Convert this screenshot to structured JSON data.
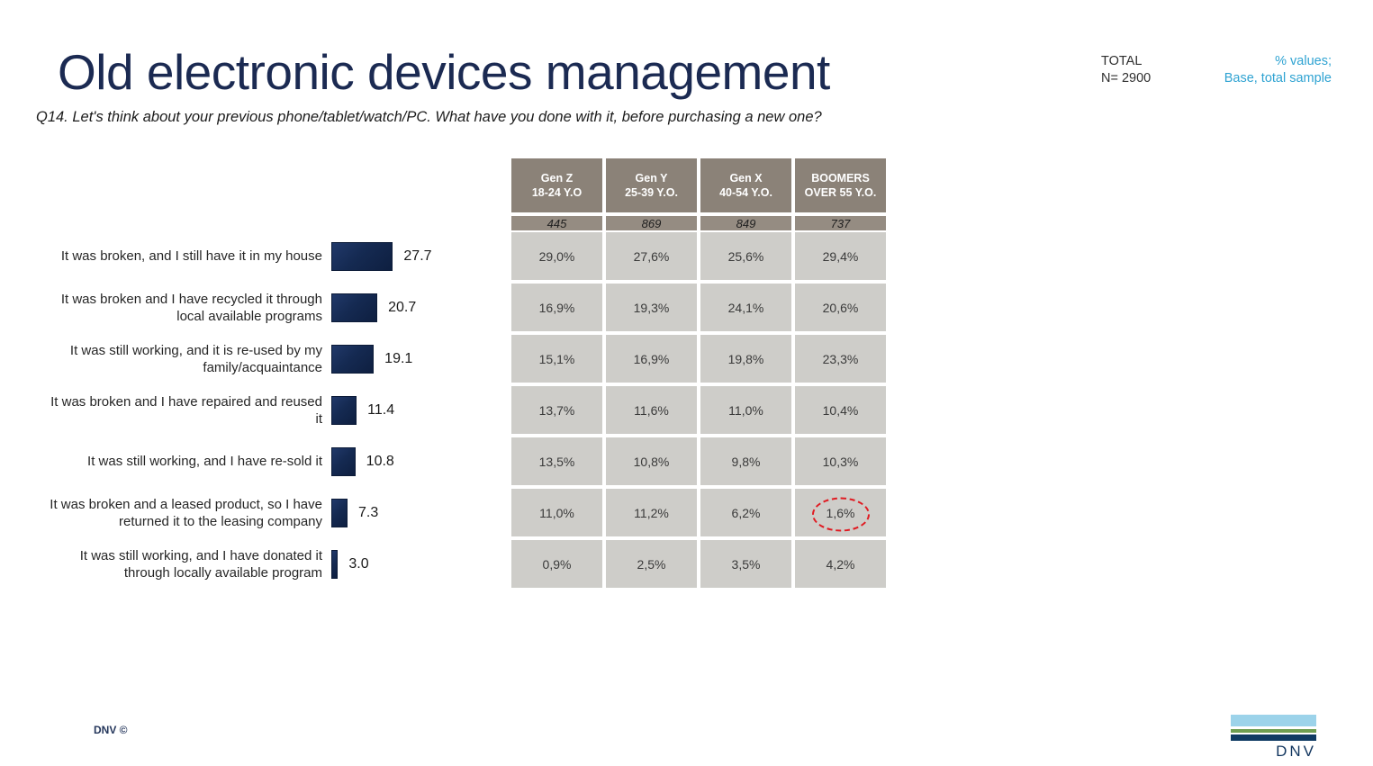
{
  "slide": {
    "title": "Old electronic devices management",
    "question": "Q14. Let's think about your previous phone/tablet/watch/PC. What have you done with it, before purchasing a new one?",
    "total_label": "TOTAL",
    "total_n": "N= 2900",
    "note_line1": "% values;",
    "note_line2": "Base, total sample",
    "footer_left": "DNV ©",
    "logo_text": "DNV"
  },
  "colors": {
    "title_navy": "#1b2a52",
    "bar_navy": "#152a52",
    "note_blue": "#2fa3d2",
    "table_header_taupe": "#8b8278",
    "table_base_taupe": "#958c82",
    "table_cell_gray": "#cecdc9",
    "highlight_red": "#e01b22",
    "logo_lightblue": "#9cd3ea",
    "logo_green": "#6f9e52",
    "logo_navy": "#0f3a63"
  },
  "chart_data": {
    "type": "bar",
    "orientation": "horizontal",
    "title": "Old electronic devices management",
    "xlabel": "",
    "ylabel": "",
    "xlim": [
      0,
      30
    ],
    "grid": false,
    "categories": [
      "It was broken, and I still have it in my house",
      "It was broken and I have recycled it through local available programs",
      "It was still working, and it is re-used by my family/acquaintance",
      "It was broken and I have repaired and reused it",
      "It was still working, and I have re-sold it",
      "It was broken and a leased product, so I have returned it to the leasing company",
      "It was still working, and I have donated it through locally available program"
    ],
    "values": [
      27.7,
      20.7,
      19.1,
      11.4,
      10.8,
      7.3,
      3.0
    ],
    "value_labels": [
      "27.7",
      "20.7",
      "19.1",
      "11.4",
      "10.8",
      "7.3",
      "3.0"
    ],
    "table": {
      "columns": [
        {
          "name": "Gen Z",
          "age": "18-24 Y.O"
        },
        {
          "name": "Gen Y",
          "age": "25-39 Y.O."
        },
        {
          "name": "Gen X",
          "age": "40-54 Y.O."
        },
        {
          "name": "BOOMERS",
          "age": "OVER 55 Y.O."
        }
      ],
      "base_values": [
        "445",
        "869",
        "849",
        "737"
      ],
      "rows": [
        [
          "29,0%",
          "27,6%",
          "25,6%",
          "29,4%"
        ],
        [
          "16,9%",
          "19,3%",
          "24,1%",
          "20,6%"
        ],
        [
          "15,1%",
          "16,9%",
          "19,8%",
          "23,3%"
        ],
        [
          "13,7%",
          "11,6%",
          "11,0%",
          "10,4%"
        ],
        [
          "13,5%",
          "10,8%",
          "9,8%",
          "10,3%"
        ],
        [
          "11,0%",
          "11,2%",
          "6,2%",
          "1,6%"
        ],
        [
          "0,9%",
          "2,5%",
          "3,5%",
          "4,2%"
        ]
      ],
      "highlight": {
        "row": 5,
        "col": 3
      }
    }
  }
}
